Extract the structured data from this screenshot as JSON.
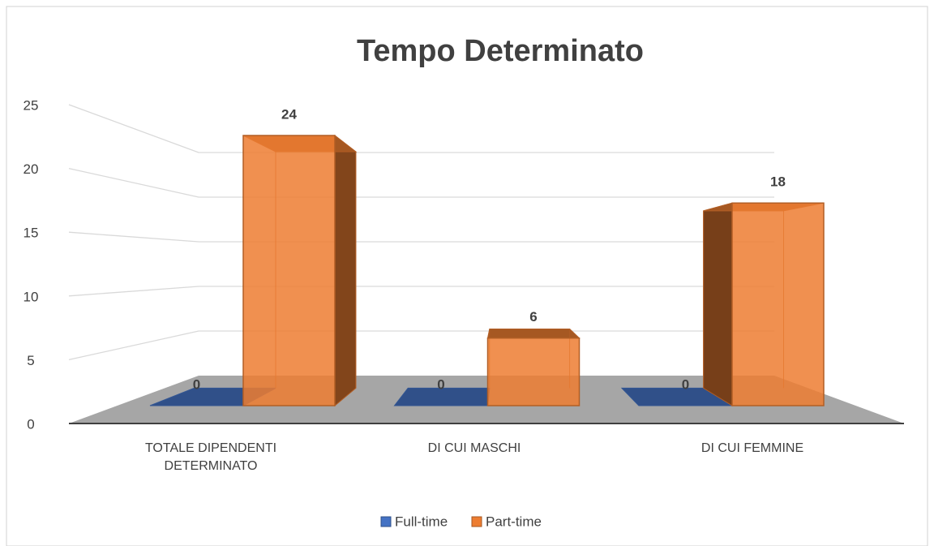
{
  "chart_data": {
    "type": "bar3d",
    "title": "Tempo Determinato",
    "categories": [
      "TOTALE DIPENDENTI DETERMINATO",
      "DI CUI MASCHI",
      "DI CUI FEMMINE"
    ],
    "series": [
      {
        "name": "Full-time",
        "color": "#4472c4",
        "values": [
          0,
          0,
          0
        ]
      },
      {
        "name": "Part-time",
        "color": "#ed7d31",
        "values": [
          24,
          6,
          18
        ]
      }
    ],
    "ylim": [
      0,
      25
    ],
    "yticks": [
      0,
      5,
      10,
      15,
      20,
      25
    ],
    "grid": true,
    "legend": "bottom"
  }
}
